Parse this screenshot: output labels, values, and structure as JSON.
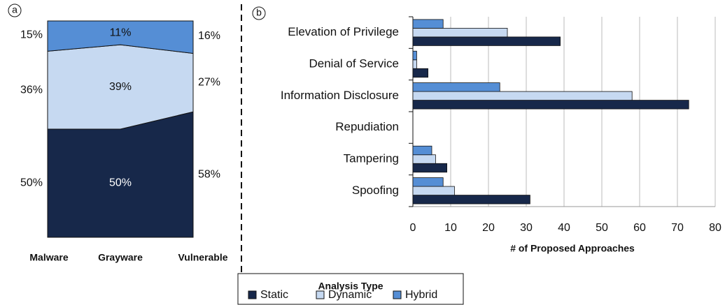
{
  "chart_data": [
    {
      "type": "area",
      "label": "a",
      "categories": [
        "Malware",
        "Grayware",
        "Vulnerable"
      ],
      "ylim": [
        0,
        100
      ],
      "series": [
        {
          "name": "Static",
          "color": "#17284a",
          "values": [
            50,
            50,
            58
          ],
          "value_labels": [
            "50%",
            "50%",
            "58%"
          ]
        },
        {
          "name": "Dynamic",
          "color": "#c6d9f1",
          "values": [
            36,
            39,
            27
          ],
          "value_labels": [
            "36%",
            "39%",
            "27%"
          ]
        },
        {
          "name": "Hybrid",
          "color": "#558ed5",
          "values": [
            15,
            11,
            16
          ],
          "value_labels": [
            "15%",
            "11%",
            "16%"
          ]
        }
      ]
    },
    {
      "type": "hbar",
      "label": "b",
      "xlabel": "# of Proposed Approaches",
      "categories": [
        "Elevation of Privilege",
        "Denial of Service",
        "Information Disclosure",
        "Repudiation",
        "Tampering",
        "Spoofing"
      ],
      "xlim": [
        0,
        80
      ],
      "xticks": [
        0,
        10,
        20,
        30,
        40,
        50,
        60,
        70,
        80
      ],
      "grid": true,
      "series": [
        {
          "name": "Static",
          "color": "#17284a",
          "values": [
            39,
            4,
            73,
            0,
            9,
            31
          ]
        },
        {
          "name": "Dynamic",
          "color": "#c6d9f1",
          "values": [
            25,
            1,
            58,
            0,
            6,
            11
          ]
        },
        {
          "name": "Hybrid",
          "color": "#558ed5",
          "values": [
            8,
            1,
            23,
            0,
            5,
            8
          ]
        }
      ]
    }
  ],
  "legend_title": "Analysis Type"
}
